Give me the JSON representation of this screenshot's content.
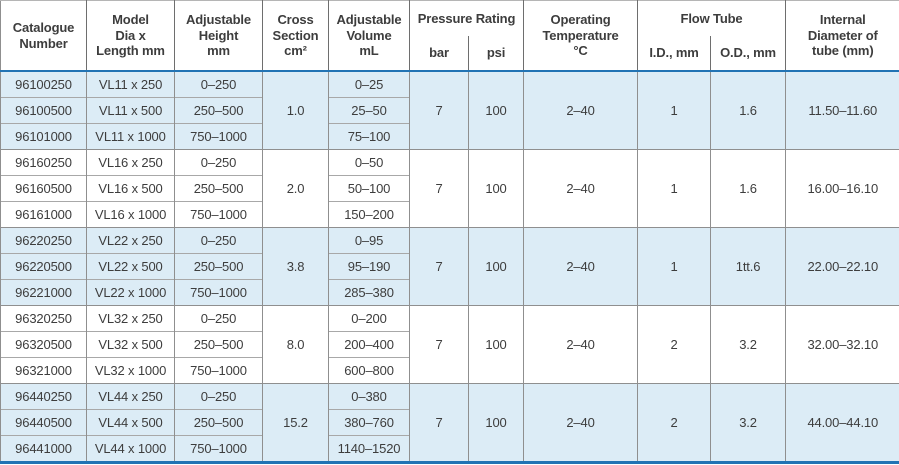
{
  "table": {
    "headers": {
      "catalogue": "Catalogue\nNumber",
      "model": "Model\nDia x\nLength mm",
      "height": "Adjustable\nHeight\nmm",
      "cross_section": "Cross\nSection\ncm²",
      "volume": "Adjustable\nVolume\nmL",
      "pressure_group": "Pressure Rating",
      "bar": "bar",
      "psi": "psi",
      "temperature": "Operating\nTemperature\n°C",
      "flow_tube_group": "Flow Tube",
      "id": "I.D., mm",
      "od": "O.D., mm",
      "internal": "Internal\nDiameter of\ntube (mm)"
    },
    "groups": [
      {
        "shaded": true,
        "cross_section": "1.0",
        "bar": "7",
        "psi": "100",
        "temperature": "2–40",
        "id": "1",
        "od": "1.6",
        "internal": "11.50–11.60",
        "rows": [
          {
            "catalogue": "96100250",
            "model": "VL11 x 250",
            "height": "0–250",
            "volume": "0–25"
          },
          {
            "catalogue": "96100500",
            "model": "VL11 x 500",
            "height": "250–500",
            "volume": "25–50"
          },
          {
            "catalogue": "96101000",
            "model": "VL11 x 1000",
            "height": "750–1000",
            "volume": "75–100"
          }
        ]
      },
      {
        "shaded": false,
        "cross_section": "2.0",
        "bar": "7",
        "psi": "100",
        "temperature": "2–40",
        "id": "1",
        "od": "1.6",
        "internal": "16.00–16.10",
        "rows": [
          {
            "catalogue": "96160250",
            "model": "VL16 x 250",
            "height": "0–250",
            "volume": "0–50"
          },
          {
            "catalogue": "96160500",
            "model": "VL16 x 500",
            "height": "250–500",
            "volume": "50–100"
          },
          {
            "catalogue": "96161000",
            "model": "VL16 x 1000",
            "height": "750–1000",
            "volume": "150–200"
          }
        ]
      },
      {
        "shaded": true,
        "cross_section": "3.8",
        "bar": "7",
        "psi": "100",
        "temperature": "2–40",
        "id": "1",
        "od": "1tt.6",
        "internal": "22.00–22.10",
        "rows": [
          {
            "catalogue": "96220250",
            "model": "VL22 x 250",
            "height": "0–250",
            "volume": "0–95"
          },
          {
            "catalogue": "96220500",
            "model": "VL22 x 500",
            "height": "250–500",
            "volume": "95–190"
          },
          {
            "catalogue": "96221000",
            "model": "VL22 x 1000",
            "height": "750–1000",
            "volume": "285–380"
          }
        ]
      },
      {
        "shaded": false,
        "cross_section": "8.0",
        "bar": "7",
        "psi": "100",
        "temperature": "2–40",
        "id": "2",
        "od": "3.2",
        "internal": "32.00–32.10",
        "rows": [
          {
            "catalogue": "96320250",
            "model": "VL32 x 250",
            "height": "0–250",
            "volume": "0–200"
          },
          {
            "catalogue": "96320500",
            "model": "VL32 x 500",
            "height": "250–500",
            "volume": "200–400"
          },
          {
            "catalogue": "96321000",
            "model": "VL32 x 1000",
            "height": "750–1000",
            "volume": "600–800"
          }
        ]
      },
      {
        "shaded": true,
        "cross_section": "15.2",
        "bar": "7",
        "psi": "100",
        "temperature": "2–40",
        "id": "2",
        "od": "3.2",
        "internal": "44.00–44.10",
        "rows": [
          {
            "catalogue": "96440250",
            "model": "VL44 x 250",
            "height": "0–250",
            "volume": "0–380"
          },
          {
            "catalogue": "96440500",
            "model": "VL44 x 500",
            "height": "250–500",
            "volume": "380–760"
          },
          {
            "catalogue": "96441000",
            "model": "VL44 x 1000",
            "height": "750–1000",
            "volume": "1140–1520"
          }
        ]
      }
    ]
  },
  "colors": {
    "accent_blue_line": "#2173b4",
    "band_blue": "#dcecf6",
    "grid_gray": "#8f8f8f",
    "text": "#3d3d3d"
  }
}
